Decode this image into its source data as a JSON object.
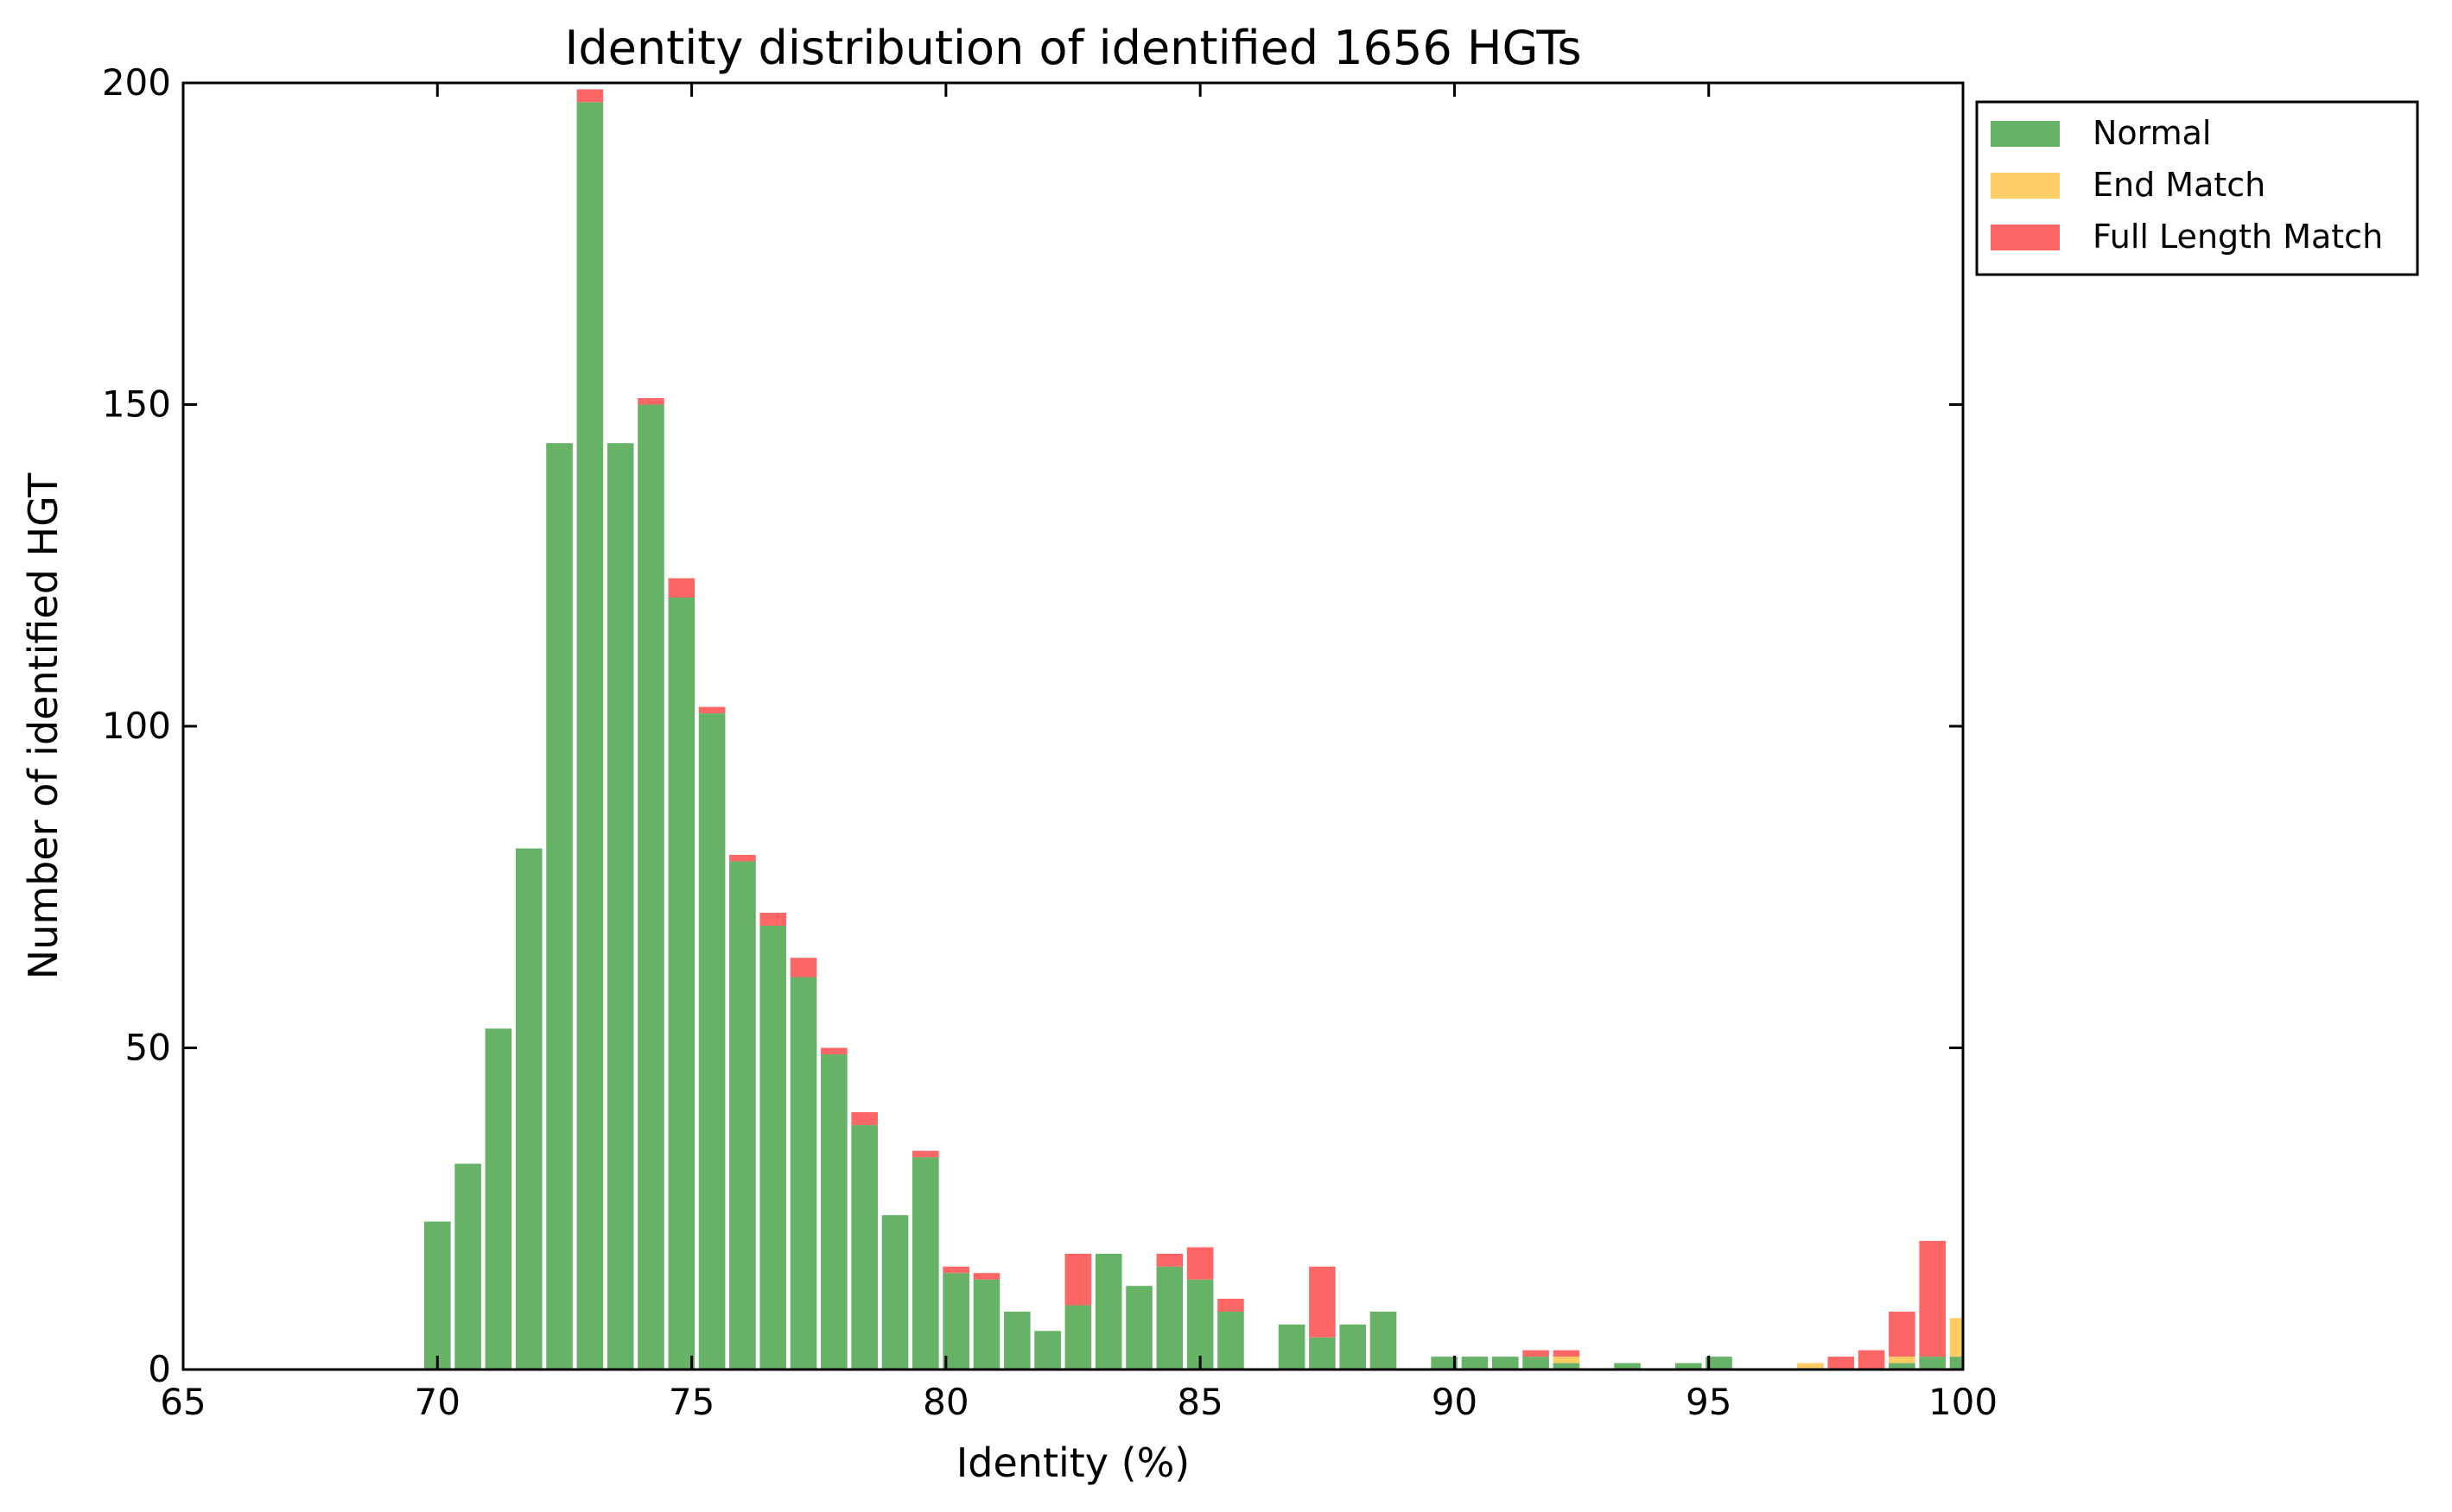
{
  "chart_data": {
    "type": "bar",
    "stacked": true,
    "title": "Identity distribution of identified 1656 HGTs",
    "xlabel": "Identity (%)",
    "ylabel": "Number of identified HGT",
    "xlim": [
      65,
      100
    ],
    "ylim": [
      0,
      200
    ],
    "xticks": [
      65,
      70,
      75,
      80,
      85,
      90,
      95,
      100
    ],
    "yticks": [
      0,
      50,
      100,
      150,
      200
    ],
    "grid": false,
    "legend_position": "outside-top-right",
    "bar_width": 0.52,
    "x": [
      70.0,
      70.6,
      71.2,
      71.8,
      72.4,
      73.0,
      73.6,
      74.2,
      74.8,
      75.4,
      76.0,
      76.6,
      77.2,
      77.8,
      78.4,
      79.0,
      79.6,
      80.2,
      80.8,
      81.4,
      82.0,
      82.6,
      83.2,
      83.8,
      84.4,
      85.0,
      85.6,
      86.2,
      86.8,
      87.4,
      88.0,
      88.6,
      89.2,
      89.8,
      90.4,
      91.0,
      91.6,
      92.2,
      92.8,
      93.4,
      94.0,
      94.6,
      95.2,
      95.8,
      96.4,
      97.0,
      97.6,
      98.2,
      98.8,
      99.4,
      100.0
    ],
    "series": [
      {
        "name": "Normal",
        "color": "#66b266",
        "values": [
          23,
          32,
          53,
          81,
          144,
          197,
          144,
          150,
          120,
          102,
          79,
          69,
          61,
          49,
          38,
          24,
          33,
          15,
          14,
          9,
          6,
          10,
          18,
          13,
          16,
          14,
          9,
          0,
          7,
          5,
          7,
          9,
          0,
          2,
          2,
          2,
          2,
          1,
          0,
          1,
          0,
          1,
          2,
          0,
          0,
          0,
          0,
          0,
          1,
          2,
          2
        ]
      },
      {
        "name": "End Match",
        "color": "#ffcc66",
        "values": [
          0,
          0,
          0,
          0,
          0,
          0,
          0,
          0,
          0,
          0,
          0,
          0,
          0,
          0,
          0,
          0,
          0,
          0,
          0,
          0,
          0,
          0,
          0,
          0,
          0,
          0,
          0,
          0,
          0,
          0,
          0,
          0,
          0,
          0,
          0,
          0,
          0,
          1,
          0,
          0,
          0,
          0,
          0,
          0,
          0,
          1,
          0,
          0,
          1,
          0,
          6
        ]
      },
      {
        "name": "Full Length Match",
        "color": "#ff6666",
        "values": [
          0,
          0,
          0,
          0,
          0,
          2,
          0,
          1,
          3,
          1,
          1,
          2,
          3,
          1,
          2,
          0,
          1,
          1,
          1,
          0,
          0,
          8,
          0,
          0,
          2,
          5,
          2,
          0,
          0,
          11,
          0,
          0,
          0,
          0,
          0,
          0,
          1,
          1,
          0,
          0,
          0,
          0,
          0,
          0,
          0,
          0,
          2,
          3,
          7,
          18,
          0
        ]
      }
    ]
  }
}
